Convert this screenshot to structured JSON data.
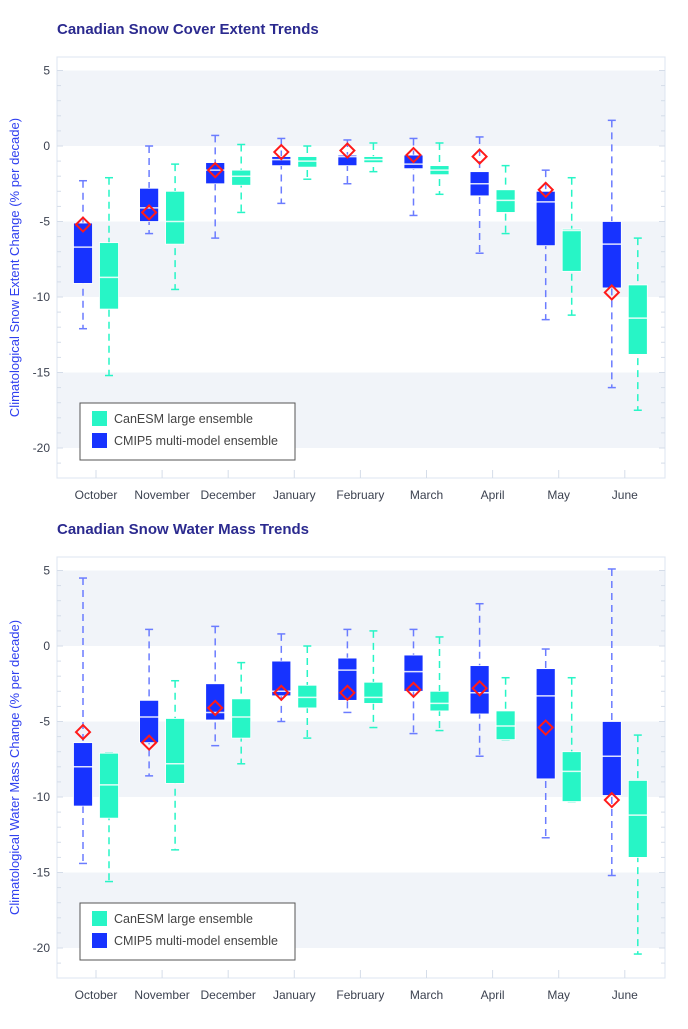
{
  "colors": {
    "cmip5": "#1733ff",
    "canesm": "#27f5c6",
    "observed": "#ff1a1a",
    "band": "#f1f4f9",
    "title": "#2b2a8f",
    "ylabel": "#2f3ff0"
  },
  "chart_data": [
    {
      "type": "box",
      "title": "Canadian Snow Cover Extent Trends",
      "xlabel": "",
      "ylabel": "Climatological Snow Extent Change (% per decade)",
      "ylim": [
        -22,
        5.9
      ],
      "yticks": [
        5,
        0,
        -5,
        -10,
        -15,
        -20
      ],
      "grid": "alternating horizontal bands",
      "legend_position": "bottom-left",
      "categories": [
        "October",
        "November",
        "December",
        "January",
        "February",
        "March",
        "April",
        "May",
        "June"
      ],
      "series": [
        {
          "name": "CanESM large ensemble",
          "color_key": "canesm",
          "boxes": [
            {
              "max": -2.1,
              "q3": -6.4,
              "median": -8.7,
              "q1": -10.8,
              "min": -15.2
            },
            {
              "max": -1.2,
              "q3": -3.0,
              "median": -5.0,
              "q1": -6.5,
              "min": -9.5
            },
            {
              "max": 0.1,
              "q3": -1.6,
              "median": -2.0,
              "q1": -2.6,
              "min": -4.4
            },
            {
              "max": 0.0,
              "q3": -0.7,
              "median": -1.0,
              "q1": -1.4,
              "min": -2.2
            },
            {
              "max": 0.2,
              "q3": -0.7,
              "median": -0.9,
              "q1": -1.1,
              "min": -1.7
            },
            {
              "max": 0.2,
              "q3": -1.3,
              "median": -1.6,
              "q1": -1.9,
              "min": -3.2
            },
            {
              "max": -1.3,
              "q3": -2.9,
              "median": -3.6,
              "q1": -4.4,
              "min": -5.8
            },
            {
              "max": -2.1,
              "q3": -5.5,
              "median": -5.6,
              "q1": -8.3,
              "min": -11.2
            },
            {
              "max": -6.1,
              "q3": -9.2,
              "median": -11.4,
              "q1": -13.8,
              "min": -17.5
            }
          ]
        },
        {
          "name": "CMIP5 multi-model ensemble",
          "color_key": "cmip5",
          "boxes": [
            {
              "max": -2.3,
              "q3": -5.1,
              "median": -6.7,
              "q1": -9.1,
              "min": -12.1,
              "observed": -5.2
            },
            {
              "max": 0.0,
              "q3": -2.8,
              "median": -4.1,
              "q1": -5.0,
              "min": -5.8,
              "observed": -4.4
            },
            {
              "max": 0.7,
              "q3": -1.1,
              "median": -1.6,
              "q1": -2.5,
              "min": -6.1,
              "observed": -1.6
            },
            {
              "max": 0.5,
              "q3": -0.7,
              "median": -0.9,
              "q1": -1.3,
              "min": -3.8,
              "observed": -0.4
            },
            {
              "max": 0.4,
              "q3": -0.6,
              "median": -0.7,
              "q1": -1.3,
              "min": -2.5,
              "observed": -0.3
            },
            {
              "max": 0.5,
              "q3": -0.6,
              "median": -1.2,
              "q1": -1.5,
              "min": -4.6,
              "observed": -0.6
            },
            {
              "max": 0.6,
              "q3": -1.7,
              "median": -2.5,
              "q1": -3.3,
              "min": -7.1,
              "observed": -0.7
            },
            {
              "max": -1.6,
              "q3": -3.0,
              "median": -3.7,
              "q1": -6.6,
              "min": -11.5,
              "observed": -2.9
            },
            {
              "max": 1.7,
              "q3": -5.0,
              "median": -6.5,
              "q1": -9.4,
              "min": -16.0,
              "observed": -9.7
            }
          ]
        }
      ]
    },
    {
      "type": "box",
      "title": "Canadian Snow Water Mass Trends",
      "xlabel": "",
      "ylabel": "Climatological Water Mass Change (% per decade)",
      "ylim": [
        -22,
        5.9
      ],
      "yticks": [
        5,
        0,
        -5,
        -10,
        -15,
        -20
      ],
      "grid": "alternating horizontal bands",
      "legend_position": "bottom-left",
      "categories": [
        "October",
        "November",
        "December",
        "January",
        "February",
        "March",
        "April",
        "May",
        "June"
      ],
      "series": [
        {
          "name": "CanESM large ensemble",
          "color_key": "canesm",
          "boxes": [
            {
              "max": -7.1,
              "q3": -7.1,
              "median": -9.2,
              "q1": -11.4,
              "min": -15.6
            },
            {
              "max": -2.3,
              "q3": -4.8,
              "median": -7.8,
              "q1": -9.1,
              "min": -13.5
            },
            {
              "max": -1.1,
              "q3": -3.5,
              "median": -4.7,
              "q1": -6.1,
              "min": -7.8
            },
            {
              "max": 0.0,
              "q3": -2.6,
              "median": -3.4,
              "q1": -4.1,
              "min": -6.1
            },
            {
              "max": 1.0,
              "q3": -2.4,
              "median": -3.4,
              "q1": -3.8,
              "min": -5.4
            },
            {
              "max": 0.6,
              "q3": -3.0,
              "median": -3.8,
              "q1": -4.3,
              "min": -5.6
            },
            {
              "max": -2.1,
              "q3": -4.3,
              "median": -5.3,
              "q1": -6.2,
              "min": -6.2
            },
            {
              "max": -2.1,
              "q3": -7.0,
              "median": -8.3,
              "q1": -10.3,
              "min": -10.3
            },
            {
              "max": -5.9,
              "q3": -8.9,
              "median": -11.2,
              "q1": -14.0,
              "min": -20.4
            }
          ]
        },
        {
          "name": "CMIP5 multi-model ensemble",
          "color_key": "cmip5",
          "boxes": [
            {
              "max": 4.5,
              "q3": -6.4,
              "median": -8.0,
              "q1": -10.6,
              "min": -14.4,
              "observed": -5.7
            },
            {
              "max": 1.1,
              "q3": -3.6,
              "median": -4.7,
              "q1": -6.4,
              "min": -8.6,
              "observed": -6.4
            },
            {
              "max": 1.3,
              "q3": -2.5,
              "median": -4.4,
              "q1": -4.9,
              "min": -6.6,
              "observed": -4.1
            },
            {
              "max": 0.8,
              "q3": -1.0,
              "median": -3.0,
              "q1": -3.3,
              "min": -5.0,
              "observed": -3.1
            },
            {
              "max": 1.1,
              "q3": -0.8,
              "median": -1.6,
              "q1": -3.6,
              "min": -4.4,
              "observed": -3.1
            },
            {
              "max": 1.1,
              "q3": -0.6,
              "median": -1.7,
              "q1": -3.0,
              "min": -5.8,
              "observed": -2.9
            },
            {
              "max": 2.8,
              "q3": -1.3,
              "median": -3.1,
              "q1": -4.5,
              "min": -7.3,
              "observed": -2.8
            },
            {
              "max": -0.2,
              "q3": -1.5,
              "median": -3.3,
              "q1": -8.8,
              "min": -12.7,
              "observed": -5.4
            },
            {
              "max": 5.1,
              "q3": -5.0,
              "median": -7.3,
              "q1": -9.9,
              "min": -15.2,
              "observed": -10.2
            }
          ]
        }
      ]
    }
  ]
}
